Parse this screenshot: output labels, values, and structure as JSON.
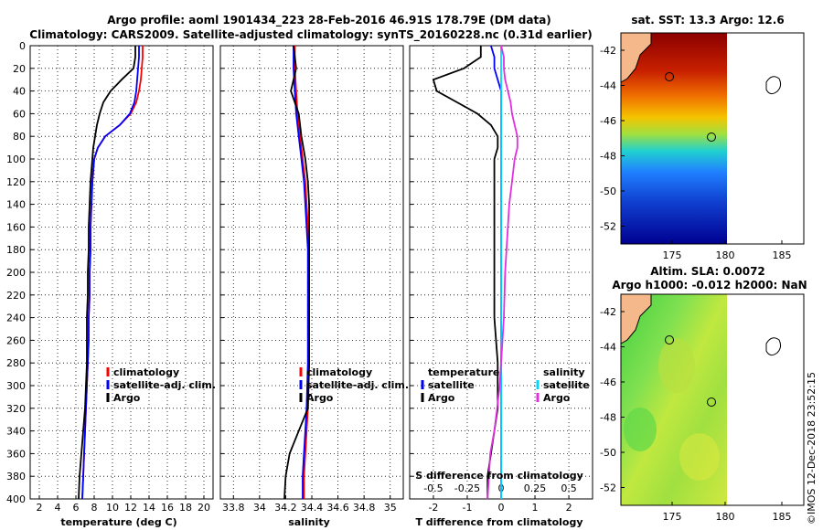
{
  "title_line1": "Argo profile: aoml 1901434_223 28-Feb-2016 46.91S 178.79E (DM data)",
  "title_line2": "Climatology: CARS2009. Satellite-adjusted climatology: synTS_20160228.nc (0.31d earlier)",
  "watermark": "©IMOS 12-Dec-2018 23:52:15",
  "colors": {
    "climatology": "#ff0000",
    "satellite": "#0000ff",
    "argo": "#000000",
    "sat_salinity": "#00d8ff",
    "argo_salinity": "#e030e0"
  },
  "depth_ticks": [
    "0",
    "20",
    "40",
    "60",
    "80",
    "100",
    "120",
    "140",
    "160",
    "180",
    "200",
    "220",
    "240",
    "260",
    "280",
    "300",
    "320",
    "340",
    "360",
    "380",
    "400"
  ],
  "legend": {
    "climatology": "climatology",
    "satellite_adj": "satellite-adj. clim.",
    "argo": "Argo"
  },
  "diff_legend": {
    "temperature": "temperature",
    "salinity": "salinity",
    "satellite": "satellite",
    "argo": "Argo"
  },
  "sst_map": {
    "title": "sat. SST: 13.3 Argo: 12.6",
    "lat_ticks": [
      "-42",
      "-44",
      "-46",
      "-48",
      "-50",
      "-52"
    ],
    "lon_ticks": [
      "175",
      "180",
      "185"
    ]
  },
  "sla_map": {
    "title_line1": "Altim. SLA: 0.0072",
    "title_line2": "Argo h1000: -0.012 h2000: NaN",
    "lat_ticks": [
      "-42",
      "-44",
      "-46",
      "-48",
      "-50",
      "-52"
    ],
    "lon_ticks": [
      "175",
      "180",
      "185"
    ]
  },
  "chart_data": [
    {
      "type": "line",
      "title": "",
      "xlabel": "temperature (deg C)",
      "ylabel": "",
      "xlim": [
        1,
        21
      ],
      "ylim": [
        400,
        0
      ],
      "xtick_labels": [
        "2",
        "4",
        "6",
        "8",
        "10",
        "12",
        "14",
        "16",
        "18",
        "20"
      ],
      "depth": [
        0,
        10,
        20,
        30,
        40,
        50,
        60,
        70,
        80,
        90,
        100,
        120,
        140,
        160,
        180,
        200,
        220,
        240,
        260,
        280,
        300,
        320,
        340,
        360,
        380,
        400
      ],
      "series": [
        {
          "name": "climatology",
          "values": [
            13.3,
            13.3,
            13.2,
            13.1,
            12.9,
            12.6,
            12.0,
            10.8,
            9.2,
            8.4,
            8.0,
            7.8,
            7.7,
            7.6,
            7.6,
            7.5,
            7.5,
            7.4,
            7.4,
            7.3,
            7.2,
            7.1,
            7.0,
            6.9,
            6.8,
            6.7
          ]
        },
        {
          "name": "satellite-adj. clim.",
          "values": [
            12.9,
            12.9,
            12.8,
            12.7,
            12.6,
            12.4,
            11.9,
            10.8,
            9.2,
            8.4,
            8.0,
            7.8,
            7.7,
            7.6,
            7.6,
            7.5,
            7.5,
            7.4,
            7.4,
            7.3,
            7.2,
            7.1,
            7.0,
            6.9,
            6.8,
            6.7
          ]
        },
        {
          "name": "Argo",
          "values": [
            12.5,
            12.5,
            12.3,
            11.0,
            9.8,
            9.0,
            8.6,
            8.3,
            8.1,
            7.9,
            7.8,
            7.6,
            7.5,
            7.4,
            7.4,
            7.3,
            7.3,
            7.2,
            7.2,
            7.2,
            7.1,
            7.0,
            6.8,
            6.6,
            6.4,
            6.3
          ]
        }
      ]
    },
    {
      "type": "line",
      "title": "",
      "xlabel": "salinity",
      "ylabel": "",
      "xlim": [
        33.7,
        35.1
      ],
      "ylim": [
        400,
        0
      ],
      "xtick_labels": [
        "33.8",
        "34",
        "34.2",
        "34.4",
        "34.6",
        "34.8",
        "35"
      ],
      "depth": [
        0,
        20,
        40,
        60,
        80,
        100,
        120,
        140,
        160,
        180,
        200,
        240,
        280,
        320,
        340,
        360,
        380,
        400
      ],
      "series": [
        {
          "name": "climatology",
          "values": [
            34.27,
            34.27,
            34.28,
            34.29,
            34.31,
            34.33,
            34.35,
            34.36,
            34.37,
            34.38,
            34.38,
            34.38,
            34.38,
            34.37,
            34.36,
            34.35,
            34.34,
            34.34
          ]
        },
        {
          "name": "satellite-adj. clim.",
          "values": [
            34.26,
            34.26,
            34.27,
            34.28,
            34.3,
            34.32,
            34.34,
            34.35,
            34.36,
            34.37,
            34.37,
            34.37,
            34.37,
            34.36,
            34.35,
            34.34,
            34.33,
            34.33
          ]
        },
        {
          "name": "Argo",
          "values": [
            34.26,
            34.28,
            34.24,
            34.3,
            34.32,
            34.35,
            34.37,
            34.38,
            34.38,
            34.38,
            34.38,
            34.38,
            34.38,
            34.37,
            34.3,
            34.23,
            34.2,
            34.19
          ]
        }
      ]
    },
    {
      "type": "line",
      "title": "",
      "xlabel": "T difference from climatology",
      "xlabel_top": "S difference from climatology",
      "ylabel": "",
      "xlim": [
        -2.7,
        2.7
      ],
      "ylim": [
        400,
        0
      ],
      "xtick_labels": [
        "-2",
        "-1",
        "0",
        "1",
        "2"
      ],
      "top_tick_labels": [
        "-0.5",
        "-0.25",
        "0",
        "0.25",
        "0.5"
      ],
      "depth": [
        0,
        10,
        20,
        30,
        40,
        50,
        60,
        70,
        80,
        90,
        100,
        120,
        140,
        160,
        180,
        200,
        240,
        280,
        300,
        320,
        340,
        360,
        380,
        400
      ],
      "series": [
        {
          "name": "temperature satellite",
          "values": [
            -0.3,
            -0.2,
            -0.2,
            -0.1,
            0.0,
            0.0,
            0.0,
            0.0,
            0.0,
            0.0,
            0.0,
            0.0,
            0.0,
            0.0,
            0.0,
            0.0,
            0.0,
            0.0,
            0.0,
            0.0,
            0.0,
            0.0,
            0.0,
            0.0
          ]
        },
        {
          "name": "temperature Argo",
          "values": [
            -0.6,
            -0.6,
            -1.1,
            -2.0,
            -1.9,
            -1.3,
            -0.7,
            -0.3,
            -0.1,
            -0.1,
            -0.2,
            -0.2,
            -0.2,
            -0.2,
            -0.2,
            -0.2,
            -0.2,
            -0.1,
            -0.1,
            -0.1,
            -0.2,
            -0.3,
            -0.4,
            -0.4
          ]
        },
        {
          "name": "salinity satellite",
          "values": [
            0.0,
            0.0,
            0.0,
            0.0,
            0.0,
            0.0,
            0.0,
            0.0,
            0.0,
            0.0,
            0.0,
            0.0,
            0.0,
            0.0,
            0.0,
            0.0,
            0.0,
            0.0,
            0.0,
            0.0,
            0.0,
            0.0,
            0.0,
            0.0
          ]
        },
        {
          "name": "salinity Argo",
          "values": [
            0.0,
            0.02,
            0.02,
            0.03,
            0.05,
            0.07,
            0.08,
            0.1,
            0.12,
            0.12,
            0.1,
            0.08,
            0.06,
            0.05,
            0.04,
            0.03,
            0.02,
            0.0,
            -0.01,
            -0.03,
            -0.05,
            -0.08,
            -0.09,
            -0.1
          ]
        }
      ]
    }
  ]
}
